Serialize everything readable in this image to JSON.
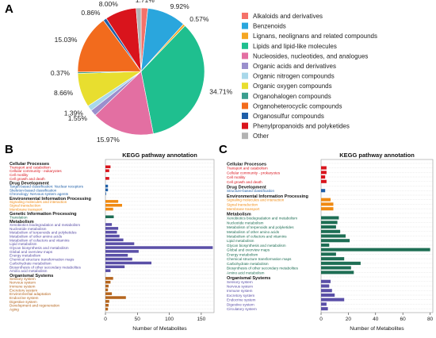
{
  "panels": {
    "a": "A",
    "b": "B",
    "c": "C"
  },
  "chart_data": [
    {
      "type": "pie",
      "panel": "A",
      "slices": [
        {
          "label": "Alkaloids and derivatives",
          "value": 1.71,
          "value_label": "1.71%",
          "color": "#f4726a"
        },
        {
          "label": "Benzenoids",
          "value": 9.92,
          "value_label": "9.92%",
          "color": "#2aa6dd"
        },
        {
          "label": "Lignans, neolignans and related compounds",
          "value": 0.57,
          "value_label": "0.57%",
          "color": "#f5a623"
        },
        {
          "label": "Lipids and lipid-like molecules",
          "value": 34.71,
          "value_label": "34.71%",
          "color": "#1fbf8f"
        },
        {
          "label": "Nucleosides, nucleotides, and analogues",
          "value": 15.97,
          "value_label": "15.97%",
          "color": "#e36fa2"
        },
        {
          "label": "Organic acids and derivatives",
          "value": 1.55,
          "value_label": "1.55%",
          "color": "#9a8fcd"
        },
        {
          "label": "Organic nitrogen compounds",
          "value": 1.39,
          "value_label": "1.39%",
          "color": "#a8d8ea"
        },
        {
          "label": "Organic oxygen compounds",
          "value": 8.66,
          "value_label": "8.66%",
          "color": "#e8de2f"
        },
        {
          "label": "Organohalogen compounds",
          "value": 0.37,
          "value_label": "0.37%",
          "color": "#3a9e8f"
        },
        {
          "label": "Organoheterocyclic compounds",
          "value": 15.03,
          "value_label": "15.03%",
          "color": "#f26b1d"
        },
        {
          "label": "Organosulfur compounds",
          "value": 0.86,
          "value_label": "0.86%",
          "color": "#1f5fa8"
        },
        {
          "label": "Phenylpropanoids and polyketides",
          "value": 8.0,
          "value_label": "8.00%",
          "color": "#d9141c"
        },
        {
          "label": "Other",
          "value": 1.26,
          "value_label": "",
          "color": "#b3b3b3"
        }
      ]
    },
    {
      "type": "bar",
      "panel": "B",
      "orientation": "horizontal",
      "title": "KEGG pathway annotation",
      "xlabel": "Number of Metabolites",
      "xlim": [
        0,
        170
      ],
      "xticks": [
        0,
        50,
        100,
        150
      ],
      "groups": [
        {
          "name": "Cellular Processes",
          "color": "#d9141c",
          "items": [
            {
              "label": "Transport and catabolism",
              "value": 8
            },
            {
              "label": "Cellular community - eukaryotes",
              "value": 6
            },
            {
              "label": "Cell motility",
              "value": 0
            },
            {
              "label": "Cell growth and death",
              "value": 6
            }
          ]
        },
        {
          "name": "Drug Development",
          "color": "#1f5fa8",
          "items": [
            {
              "label": "Target-based classification: Nuclear receptors",
              "value": 4
            },
            {
              "label": "Skeleton-based classification",
              "value": 4
            },
            {
              "label": "Chronology: Nervous system agents",
              "value": 1
            }
          ]
        },
        {
          "name": "Environmental Information Processing",
          "color": "#f08a12",
          "items": [
            {
              "label": "Signaling molecules and interaction",
              "value": 20
            },
            {
              "label": "Signal transduction",
              "value": 26
            },
            {
              "label": "Membrane transport",
              "value": 12
            }
          ]
        },
        {
          "name": "Genetic Information Processing",
          "color": "#1e6e54",
          "items": [
            {
              "label": "Translation",
              "value": 13
            }
          ]
        },
        {
          "name": "Metabolism",
          "color": "#5a4fa7",
          "items": [
            {
              "label": "Xenobiotics biodegradation and metabolism",
              "value": 10
            },
            {
              "label": "Nucleotide metabolism",
              "value": 20
            },
            {
              "label": "Metabolism of terpenoids and polyketides",
              "value": 18
            },
            {
              "label": "Metabolism of other amino acids",
              "value": 22
            },
            {
              "label": "Metabolism of cofactors and vitamins",
              "value": 28
            },
            {
              "label": "Lipid metabolism",
              "value": 45
            },
            {
              "label": "Glycan biosynthesis and metabolism",
              "value": 168
            },
            {
              "label": "Global and overview maps",
              "value": 52
            },
            {
              "label": "Energy metabolism",
              "value": 35
            },
            {
              "label": "Chemical structure transformation maps",
              "value": 42
            },
            {
              "label": "Carbohydrate metabolism",
              "value": 72
            },
            {
              "label": "Biosynthesis of other secondary metabolites",
              "value": 30
            },
            {
              "label": "Amino acid metabolism",
              "value": 8
            }
          ]
        },
        {
          "name": "Organismal Systems",
          "color": "#b5651d",
          "items": [
            {
              "label": "Sensory system",
              "value": 12
            },
            {
              "label": "Nervous system",
              "value": 8
            },
            {
              "label": "Immune system",
              "value": 5
            },
            {
              "label": "Excretory system",
              "value": 4
            },
            {
              "label": "Environmental adaptation",
              "value": 10
            },
            {
              "label": "Endocrine system",
              "value": 32
            },
            {
              "label": "Digestive system",
              "value": 6
            },
            {
              "label": "Development and regeneration",
              "value": 5
            },
            {
              "label": "Aging",
              "value": 4
            }
          ]
        }
      ]
    },
    {
      "type": "bar",
      "panel": "C",
      "orientation": "horizontal",
      "title": "KEGG pathway annotation",
      "xlabel": "Number of Metabolites",
      "xlim": [
        0,
        82
      ],
      "xticks": [
        0,
        20,
        40,
        60,
        80
      ],
      "groups": [
        {
          "name": "Cellular Processes",
          "color": "#d9141c",
          "items": [
            {
              "label": "Transport and catabolism",
              "value": 4
            },
            {
              "label": "Cellular community - prokaryotes",
              "value": 4
            },
            {
              "label": "Cell motility",
              "value": 3
            },
            {
              "label": "Cell growth and death",
              "value": 4
            }
          ]
        },
        {
          "name": "Drug Development",
          "color": "#1f5fa8",
          "items": [
            {
              "label": "Structure-based classification",
              "value": 3
            }
          ]
        },
        {
          "name": "Environmental Information Processing",
          "color": "#f08a12",
          "items": [
            {
              "label": "Signaling molecules and interaction",
              "value": 7
            },
            {
              "label": "Signal transduction",
              "value": 9
            },
            {
              "label": "Membrane transport",
              "value": 9
            }
          ]
        },
        {
          "name": "Metabolism",
          "color": "#1e6e54",
          "items": [
            {
              "label": "Xenobiotics biodegradation and metabolism",
              "value": 13
            },
            {
              "label": "Nucleotide metabolism",
              "value": 12
            },
            {
              "label": "Metabolism of terpenoids and polyketides",
              "value": 11
            },
            {
              "label": "Metabolism of other amino acids",
              "value": 14
            },
            {
              "label": "Metabolism of cofactors and vitamins",
              "value": 18
            },
            {
              "label": "Lipid metabolism",
              "value": 21
            },
            {
              "label": "Glycan biosynthesis and metabolism",
              "value": 6
            },
            {
              "label": "Global and overview maps",
              "value": 80
            },
            {
              "label": "Energy metabolism",
              "value": 11
            },
            {
              "label": "Chemical structure transformation maps",
              "value": 17
            },
            {
              "label": "Carbohydrate metabolism",
              "value": 29
            },
            {
              "label": "Biosynthesis of other secondary metabolites",
              "value": 22
            },
            {
              "label": "Amino acid metabolism",
              "value": 24
            }
          ]
        },
        {
          "name": "Organismal Systems",
          "color": "#5a4fa7",
          "items": [
            {
              "label": "Sensory system",
              "value": 7
            },
            {
              "label": "Nervous system",
              "value": 6
            },
            {
              "label": "Immune system",
              "value": 8
            },
            {
              "label": "Excretory system",
              "value": 10
            },
            {
              "label": "Endocrine system",
              "value": 17
            },
            {
              "label": "Digestive system",
              "value": 4
            },
            {
              "label": "Circulatory system",
              "value": 5
            }
          ]
        }
      ]
    }
  ]
}
